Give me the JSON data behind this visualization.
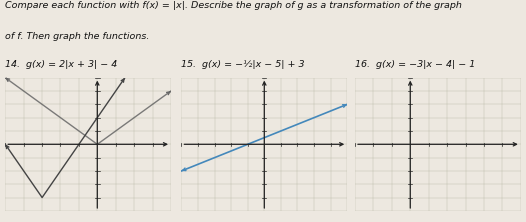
{
  "title_line1": "Compare each function with f(x) = |x|. Describe the graph of g as a transformation of the graph",
  "title_line2": "of f. Then graph the functions.",
  "problems": [
    {
      "number": "14.",
      "label": "g(x) = 2|x + 3| − 4",
      "graph": {
        "xlim": [
          -5,
          4
        ],
        "ylim": [
          -5,
          5
        ],
        "vertex_g": [
          -3,
          -4
        ],
        "color_g": "#444444",
        "color_f": "#666666",
        "color_axes": "#222222"
      }
    },
    {
      "number": "15.",
      "label": "g(x) = −½|x − 5| + 3",
      "graph": {
        "xlim": [
          -5,
          5
        ],
        "ylim": [
          -5,
          5
        ],
        "vertex_g": [
          5,
          3
        ],
        "color_g": "#4488bb",
        "color_axes": "#222222"
      }
    },
    {
      "number": "16.",
      "label": "g(x) = −3|x − 4| − 1",
      "graph": {
        "xlim": [
          -3,
          6
        ],
        "ylim": [
          -5,
          5
        ],
        "color_axes": "#222222"
      }
    }
  ],
  "paper_color": "#ede8e0",
  "text_color": "#111111",
  "title_fontsize": 6.8,
  "label_fontsize": 6.8,
  "number_fontsize": 7.5,
  "grid_color": "#bbbbaa",
  "axis_lw": 0.9,
  "graph_lw": 1.0
}
